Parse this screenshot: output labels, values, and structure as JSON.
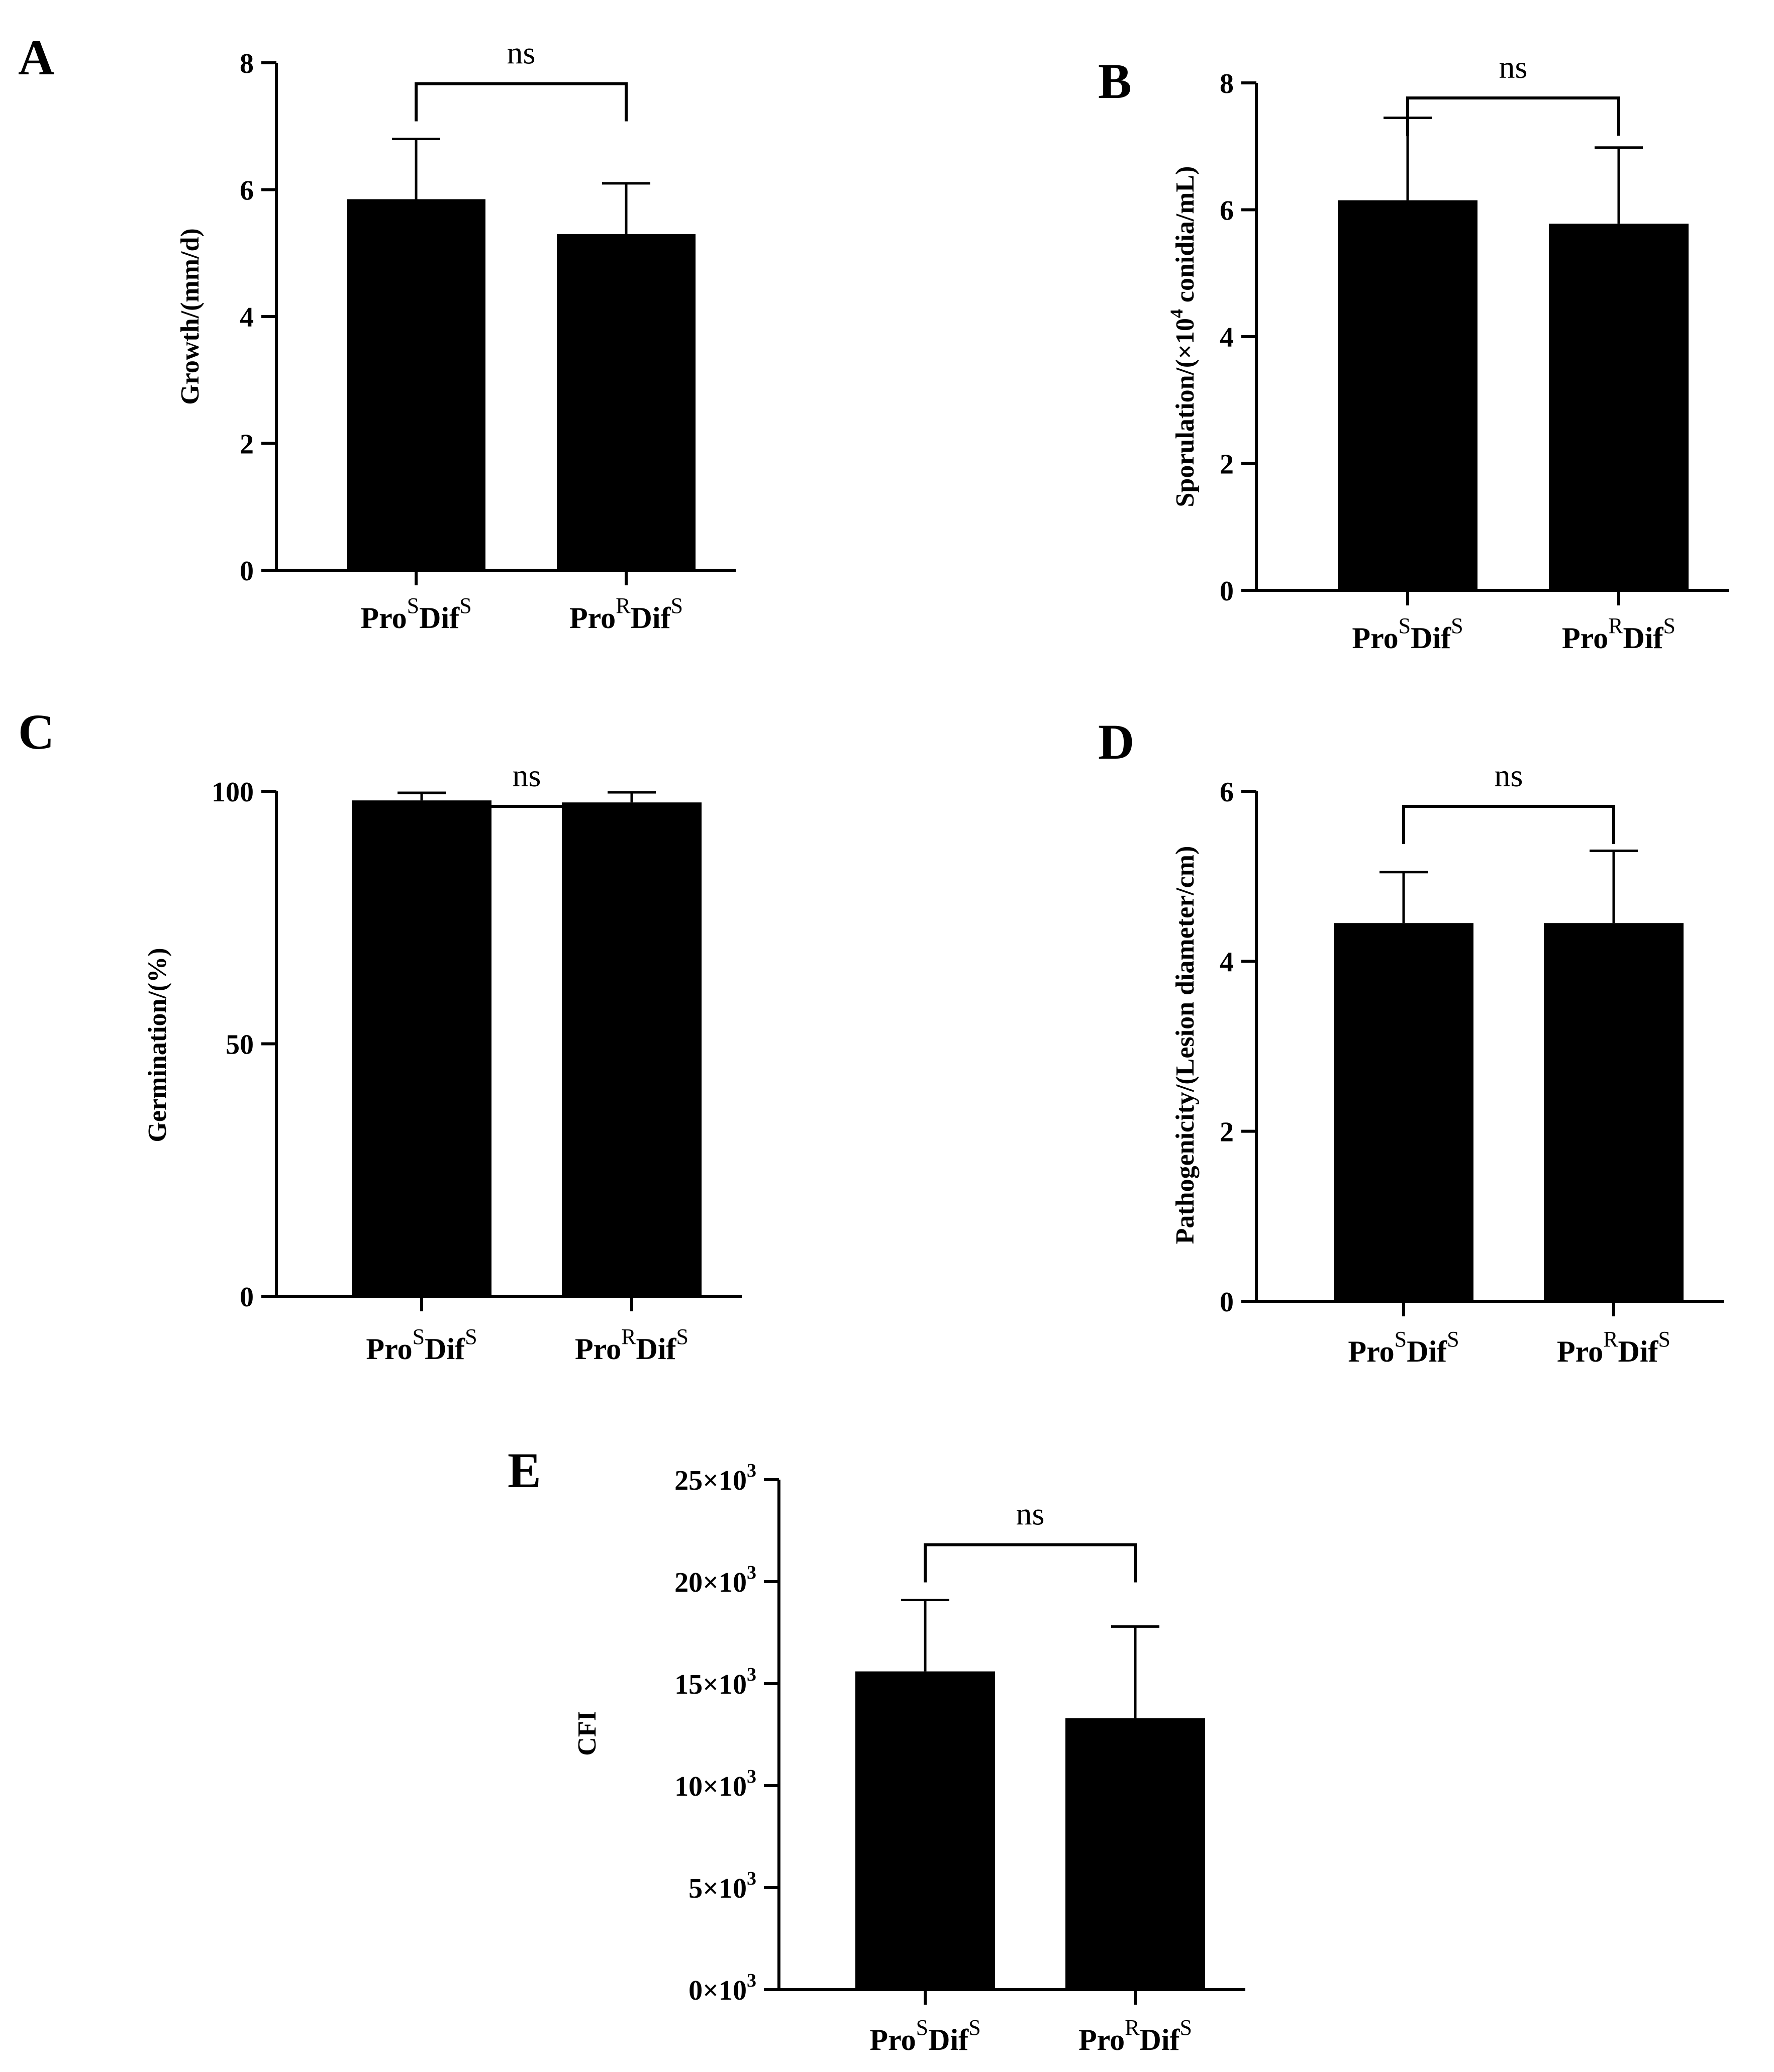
{
  "chart_data": [
    {
      "panel": "A",
      "type": "bar",
      "categories": [
        {
          "base": "Pro",
          "sup1": "S",
          "mid": "Dif",
          "sup2": "S"
        },
        {
          "base": "Pro",
          "sup1": "R",
          "mid": "Dif",
          "sup2": "S"
        }
      ],
      "values": [
        5.85,
        5.3
      ],
      "errors": [
        0.95,
        0.8
      ],
      "ylabel": {
        "text": "Growth/(mm/d)"
      },
      "ylim": [
        0,
        8
      ],
      "yticks": [
        0,
        2,
        4,
        6,
        8
      ],
      "ytick_labels": [
        {
          "t": "0"
        },
        {
          "t": "2"
        },
        {
          "t": "4"
        },
        {
          "t": "6"
        },
        {
          "t": "8"
        }
      ],
      "significance": "ns",
      "grid": false
    },
    {
      "panel": "B",
      "type": "bar",
      "categories": [
        {
          "base": "Pro",
          "sup1": "S",
          "mid": "Dif",
          "sup2": "S"
        },
        {
          "base": "Pro",
          "sup1": "R",
          "mid": "Dif",
          "sup2": "S"
        }
      ],
      "values": [
        6.15,
        5.78
      ],
      "errors": [
        1.3,
        1.2
      ],
      "ylabel": {
        "text": "Sporulation/(×10",
        "sup": "4",
        "tail": " conidia/mL)"
      },
      "ylim": [
        0,
        8
      ],
      "yticks": [
        0,
        2,
        4,
        6,
        8
      ],
      "ytick_labels": [
        {
          "t": "0"
        },
        {
          "t": "2"
        },
        {
          "t": "4"
        },
        {
          "t": "6"
        },
        {
          "t": "8"
        }
      ],
      "significance": "ns",
      "grid": false
    },
    {
      "panel": "C",
      "type": "bar",
      "categories": [
        {
          "base": "Pro",
          "sup1": "S",
          "mid": "Dif",
          "sup2": "S"
        },
        {
          "base": "Pro",
          "sup1": "R",
          "mid": "Dif",
          "sup2": "S"
        }
      ],
      "values": [
        98.2,
        97.8
      ],
      "errors": [
        1.5,
        2.0
      ],
      "ylabel": {
        "text": "Germination/(%)"
      },
      "ylim": [
        0,
        100
      ],
      "yticks": [
        0,
        50,
        100
      ],
      "ytick_labels": [
        {
          "t": "0"
        },
        {
          "t": "50"
        },
        {
          "t": "100"
        }
      ],
      "significance": "ns",
      "grid": false
    },
    {
      "panel": "D",
      "type": "bar",
      "categories": [
        {
          "base": "Pro",
          "sup1": "S",
          "mid": "Dif",
          "sup2": "S"
        },
        {
          "base": "Pro",
          "sup1": "R",
          "mid": "Dif",
          "sup2": "S"
        }
      ],
      "values": [
        4.45,
        4.45
      ],
      "errors": [
        0.6,
        0.85
      ],
      "ylabel": {
        "text": "Pathogenicity/(Lesion diameter/cm)"
      },
      "ylim": [
        0,
        6
      ],
      "yticks": [
        0,
        2,
        4,
        6
      ],
      "ytick_labels": [
        {
          "t": "0"
        },
        {
          "t": "2"
        },
        {
          "t": "4"
        },
        {
          "t": "6"
        }
      ],
      "significance": "ns",
      "grid": false
    },
    {
      "panel": "E",
      "type": "bar",
      "categories": [
        {
          "base": "Pro",
          "sup1": "S",
          "mid": "Dif",
          "sup2": "S"
        },
        {
          "base": "Pro",
          "sup1": "R",
          "mid": "Dif",
          "sup2": "S"
        }
      ],
      "values": [
        15600,
        13300
      ],
      "errors": [
        3500,
        4500
      ],
      "ylabel": {
        "text": "CFI"
      },
      "ylim": [
        0,
        25000
      ],
      "yticks": [
        0,
        5000,
        10000,
        15000,
        20000,
        25000
      ],
      "ytick_labels": [
        {
          "t": "0×10",
          "sup": "3"
        },
        {
          "t": "5×10",
          "sup": "3"
        },
        {
          "t": "10×10",
          "sup": "3"
        },
        {
          "t": "15×10",
          "sup": "3"
        },
        {
          "t": "20×10",
          "sup": "3"
        },
        {
          "t": "25×10",
          "sup": "3"
        }
      ],
      "significance": "ns",
      "grid": false
    }
  ]
}
